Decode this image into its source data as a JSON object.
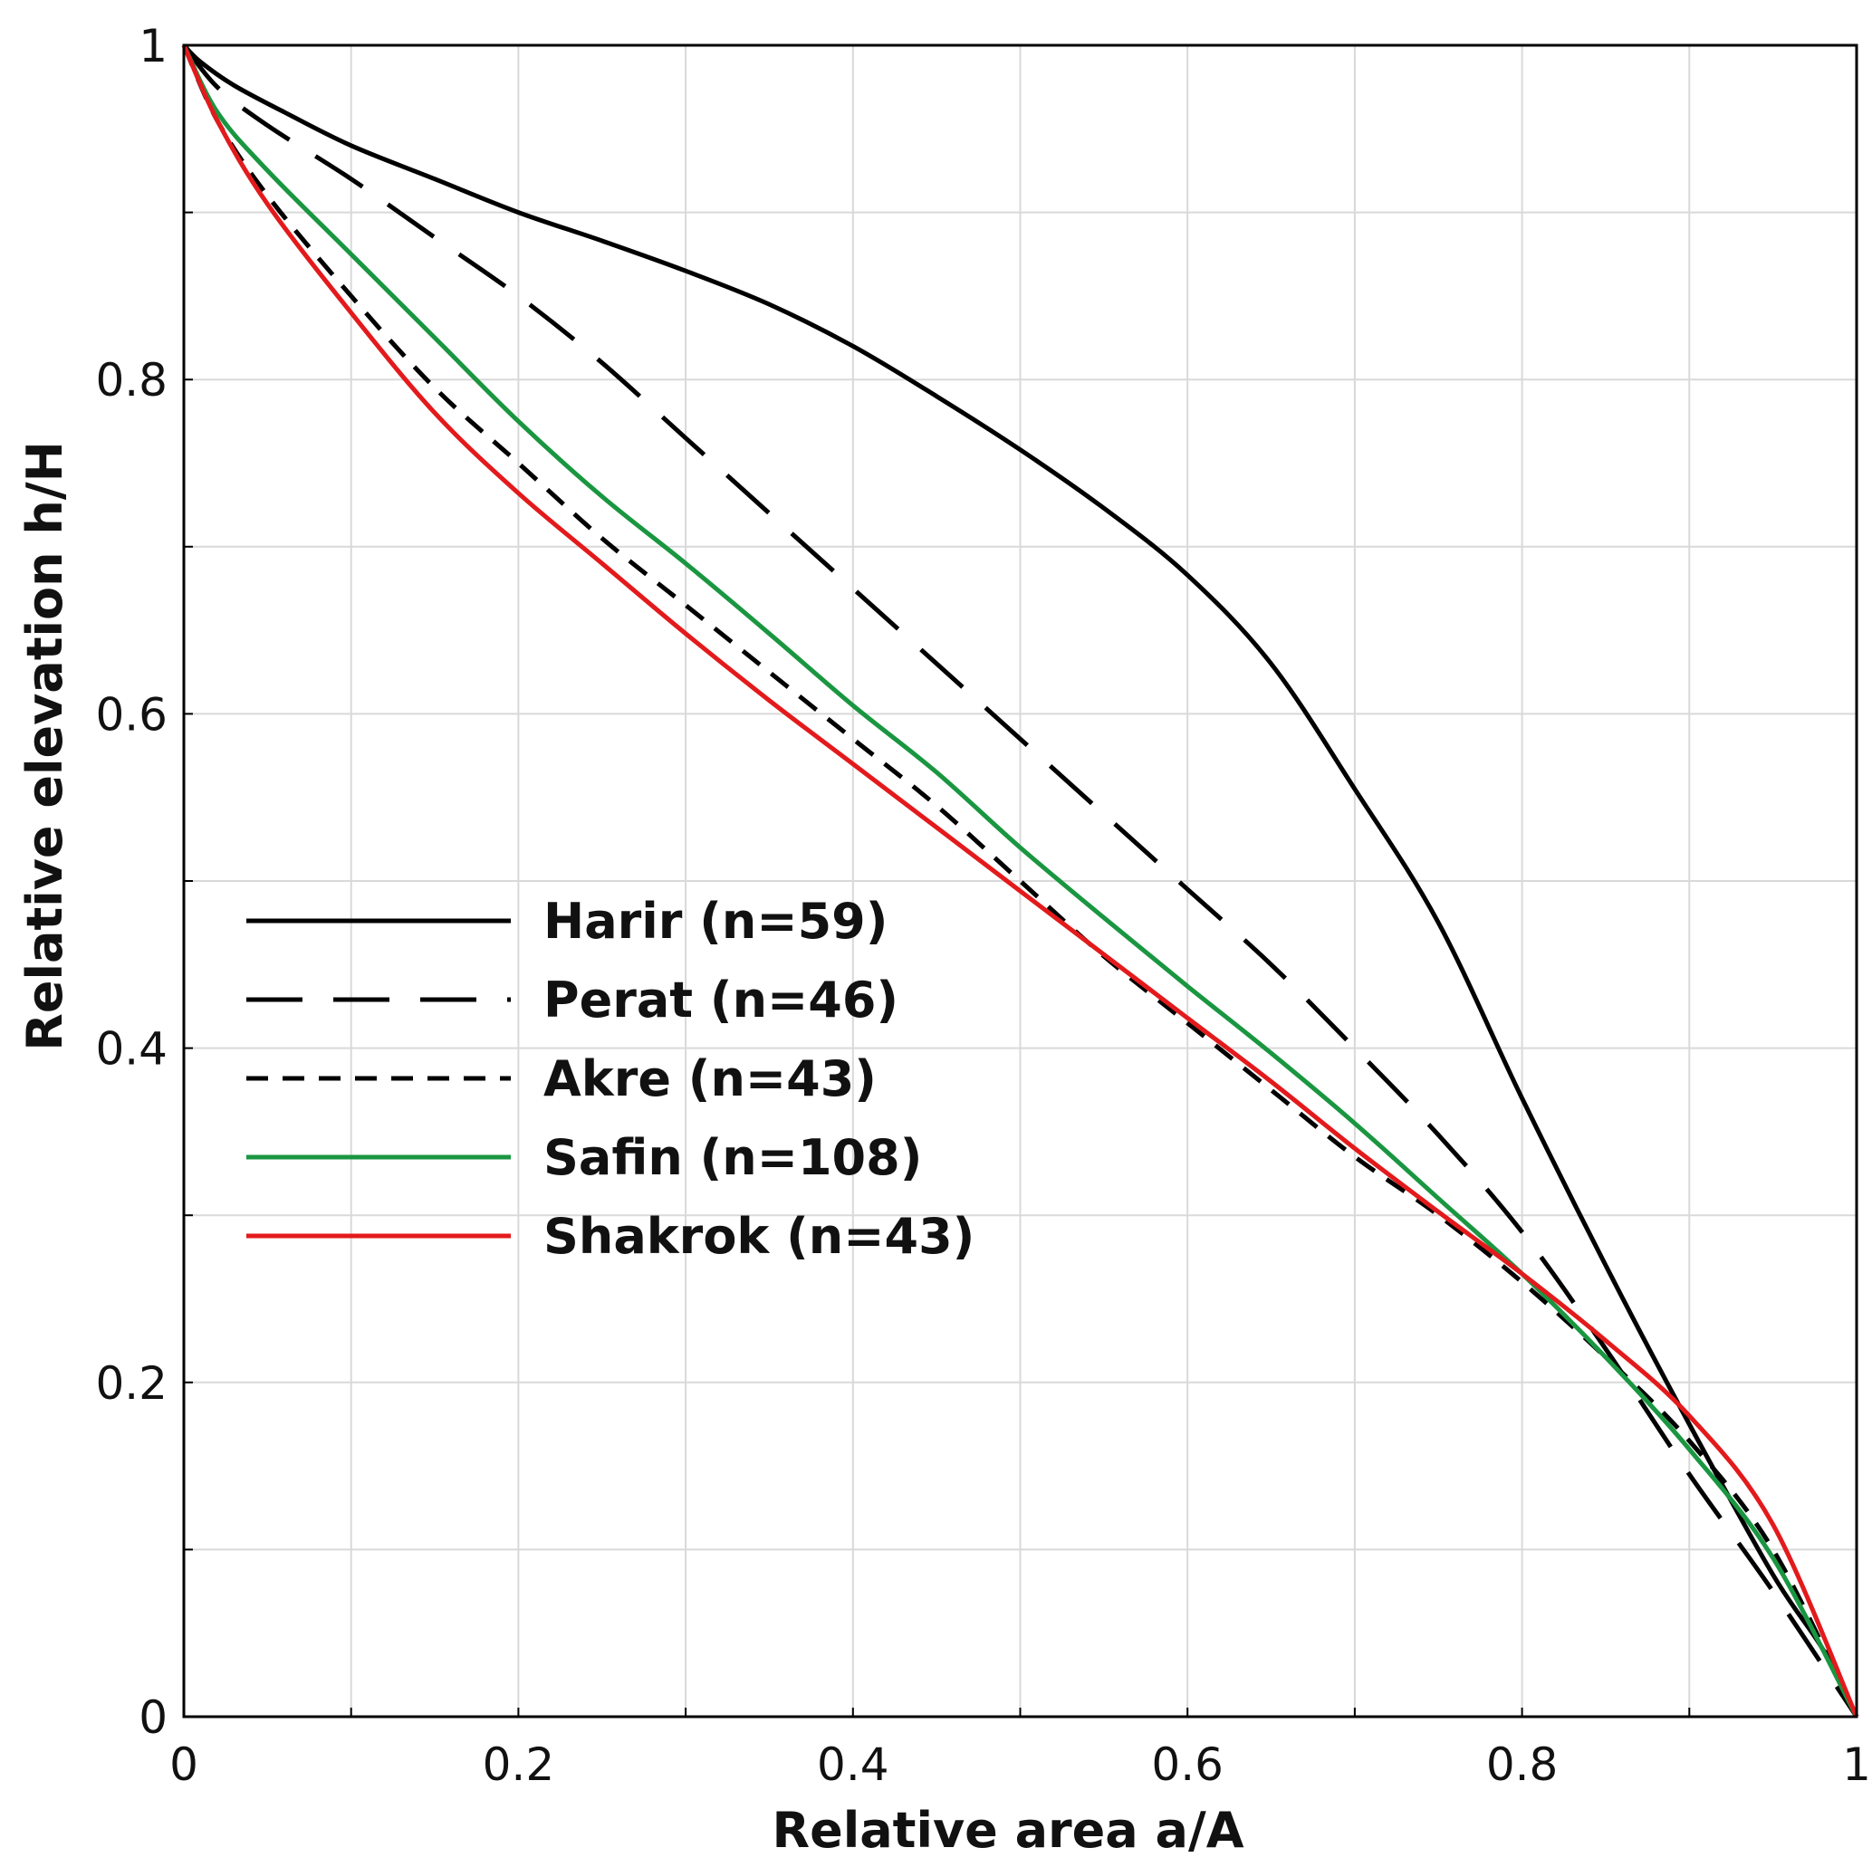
{
  "chart_data": {
    "type": "line",
    "title": "",
    "xlabel": "Relative area a/A",
    "ylabel": "Relative elevation h/H",
    "xlim": [
      0,
      1
    ],
    "ylim": [
      0,
      1
    ],
    "x_ticks": [
      "0",
      "0.2",
      "0.4",
      "0.6",
      "0.8",
      "1"
    ],
    "y_ticks": [
      "0",
      "0.2",
      "0.4",
      "0.6",
      "0.8",
      "1"
    ],
    "grid": "on",
    "legend_position": "left-center",
    "series": [
      {
        "name": "Harir (n=59)",
        "color": "#000000",
        "dash": "solid",
        "x": [
          0,
          0.01,
          0.03,
          0.06,
          0.1,
          0.15,
          0.2,
          0.25,
          0.3,
          0.35,
          0.4,
          0.45,
          0.5,
          0.55,
          0.6,
          0.65,
          0.7,
          0.75,
          0.8,
          0.85,
          0.9,
          0.95,
          0.98,
          1
        ],
        "y": [
          1,
          0.99,
          0.976,
          0.96,
          0.94,
          0.92,
          0.9,
          0.883,
          0.865,
          0.845,
          0.82,
          0.79,
          0.758,
          0.723,
          0.683,
          0.63,
          0.555,
          0.475,
          0.37,
          0.27,
          0.175,
          0.085,
          0.04,
          0
        ]
      },
      {
        "name": "Perat (n=46)",
        "color": "#000000",
        "dash": "long",
        "x": [
          0,
          0.02,
          0.05,
          0.1,
          0.15,
          0.2,
          0.25,
          0.3,
          0.35,
          0.4,
          0.45,
          0.5,
          0.55,
          0.6,
          0.65,
          0.7,
          0.75,
          0.8,
          0.85,
          0.9,
          0.95,
          1
        ],
        "y": [
          1,
          0.975,
          0.952,
          0.92,
          0.885,
          0.85,
          0.81,
          0.765,
          0.72,
          0.675,
          0.63,
          0.585,
          0.54,
          0.495,
          0.45,
          0.4,
          0.348,
          0.29,
          0.22,
          0.145,
          0.075,
          0
        ]
      },
      {
        "name": "Akre (n=43)",
        "color": "#000000",
        "dash": "short",
        "x": [
          0,
          0.02,
          0.05,
          0.1,
          0.15,
          0.2,
          0.25,
          0.3,
          0.35,
          0.4,
          0.45,
          0.5,
          0.55,
          0.6,
          0.65,
          0.7,
          0.75,
          0.8,
          0.85,
          0.9,
          0.95,
          1
        ],
        "y": [
          1,
          0.955,
          0.91,
          0.85,
          0.795,
          0.75,
          0.705,
          0.665,
          0.625,
          0.585,
          0.545,
          0.5,
          0.455,
          0.415,
          0.375,
          0.335,
          0.3,
          0.26,
          0.215,
          0.165,
          0.1,
          0
        ]
      },
      {
        "name": "Safin (n=108)",
        "color": "#1a9641",
        "dash": "solid",
        "x": [
          0,
          0.02,
          0.05,
          0.1,
          0.15,
          0.2,
          0.25,
          0.3,
          0.35,
          0.4,
          0.45,
          0.5,
          0.55,
          0.6,
          0.65,
          0.7,
          0.75,
          0.8,
          0.85,
          0.9,
          0.95,
          1
        ],
        "y": [
          1,
          0.96,
          0.925,
          0.875,
          0.825,
          0.775,
          0.73,
          0.69,
          0.648,
          0.605,
          0.565,
          0.52,
          0.478,
          0.437,
          0.397,
          0.355,
          0.31,
          0.265,
          0.215,
          0.16,
          0.095,
          0
        ]
      },
      {
        "name": "Shakrok (n=43)",
        "color": "#e31a1c",
        "dash": "solid",
        "x": [
          0,
          0.02,
          0.05,
          0.1,
          0.15,
          0.2,
          0.25,
          0.3,
          0.35,
          0.4,
          0.45,
          0.5,
          0.55,
          0.6,
          0.65,
          0.7,
          0.75,
          0.8,
          0.85,
          0.9,
          0.95,
          1
        ],
        "y": [
          1,
          0.955,
          0.905,
          0.84,
          0.78,
          0.732,
          0.69,
          0.648,
          0.608,
          0.57,
          0.532,
          0.494,
          0.456,
          0.418,
          0.38,
          0.34,
          0.302,
          0.265,
          0.225,
          0.18,
          0.115,
          0
        ]
      }
    ]
  }
}
